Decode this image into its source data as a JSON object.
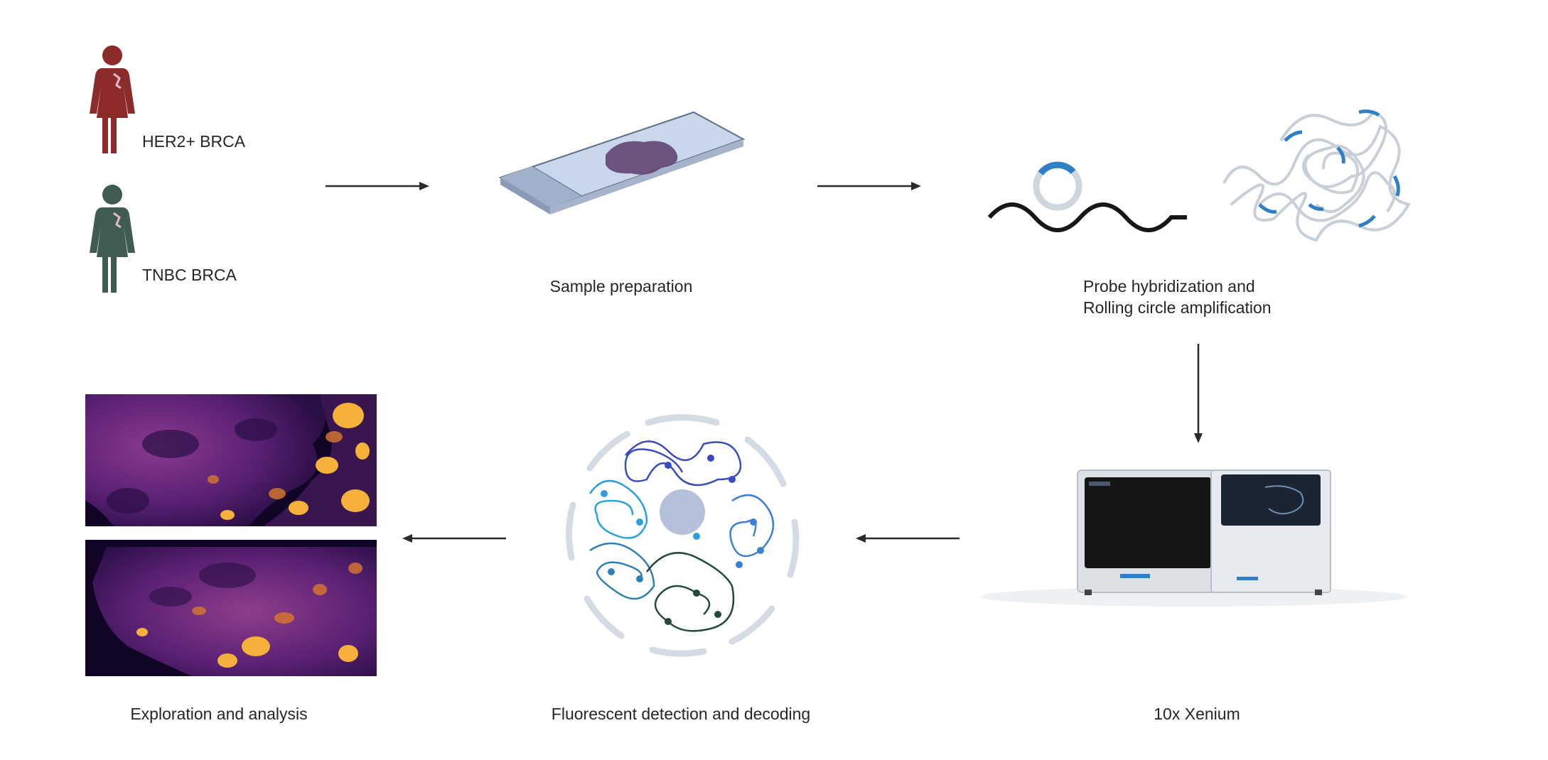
{
  "labels": {
    "her2": "HER2+ BRCA",
    "tnbc": "TNBC BRCA",
    "sample": "Sample preparation",
    "probe_line1": "Probe hybridization and",
    "probe_line2": "Rolling circle amplification",
    "xenium": "10x Xenium",
    "fluorescent": "Fluorescent detection and decoding",
    "exploration": "Exploration and analysis"
  },
  "colors": {
    "her2_figure": "#8b2b2a",
    "tnbc_figure": "#3f5b52",
    "probe_blue": "#2f7fc6",
    "arrow": "#2b2b2b",
    "heatmap_dark": "#1a0b3a",
    "heatmap_mid": "#7a2d8c",
    "heatmap_hot": "#f6b13a"
  },
  "icons": {
    "patient": "woman-figure-icon",
    "slide": "tissue-slide-icon",
    "probe": "padlock-probe-icon",
    "instrument": "xenium-instrument-icon",
    "decoding": "fluorescent-cell-icon",
    "result": "heatmap-image-icon"
  }
}
